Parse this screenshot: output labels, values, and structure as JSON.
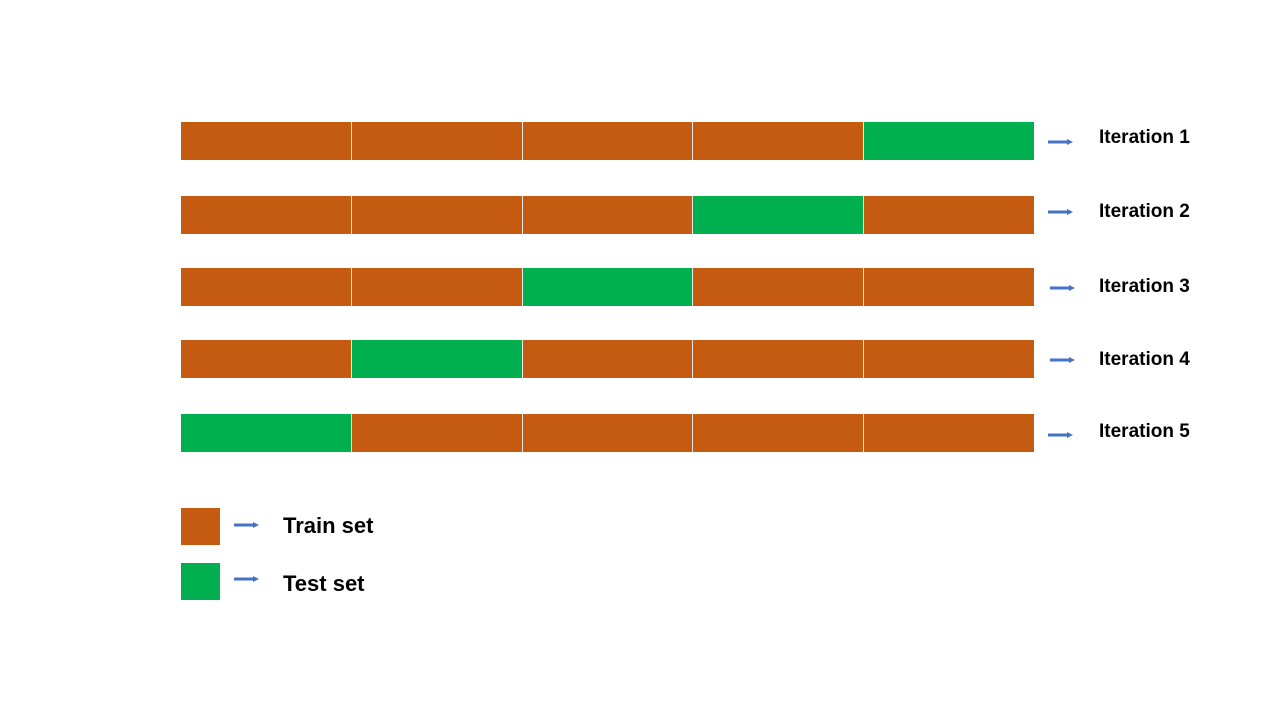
{
  "colors": {
    "train": "#C55A11",
    "test": "#00B050",
    "arrow": "#4472C4"
  },
  "icons": {
    "arrow": "right-arrow-icon"
  },
  "folds_per_iteration": 5,
  "iterations": [
    {
      "label": "Iteration 1",
      "test_fold": 5
    },
    {
      "label": "Iteration 2",
      "test_fold": 4
    },
    {
      "label": "Iteration 3",
      "test_fold": 3
    },
    {
      "label": "Iteration 4",
      "test_fold": 2
    },
    {
      "label": "Iteration 5",
      "test_fold": 1
    }
  ],
  "legend": {
    "train_label": "Train set",
    "test_label": "Test set"
  }
}
